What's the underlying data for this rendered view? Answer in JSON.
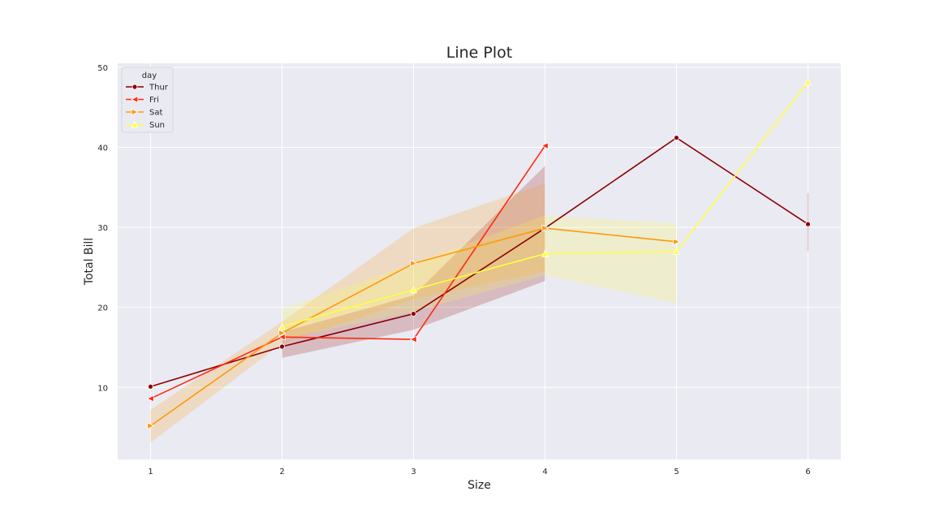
{
  "chart_data": {
    "type": "line",
    "title": "Line Plot",
    "xlabel": "Size",
    "ylabel": "Total Bill",
    "xlim": [
      0.75,
      6.25
    ],
    "ylim": [
      1,
      50.5
    ],
    "x_ticks": [
      1,
      2,
      3,
      4,
      5,
      6
    ],
    "y_ticks": [
      10,
      20,
      30,
      40,
      50
    ],
    "grid": true,
    "background": "#eaeaf2",
    "legend": {
      "title": "day",
      "position": "top-left"
    },
    "series": [
      {
        "name": "Thur",
        "color": "#8b0000",
        "marker": "circle",
        "points": [
          {
            "x": 1,
            "y": 10.1
          },
          {
            "x": 2,
            "y": 15.1
          },
          {
            "x": 3,
            "y": 19.2
          },
          {
            "x": 4,
            "y": 29.9
          },
          {
            "x": 5,
            "y": 41.2
          },
          {
            "x": 6,
            "y": 30.4
          }
        ],
        "ci": [
          {
            "x": 2,
            "lo": 13.7,
            "hi": 16.9
          },
          {
            "x": 3,
            "lo": 17.2,
            "hi": 21.5
          },
          {
            "x": 4,
            "lo": 23.3,
            "hi": 37.7
          }
        ],
        "ci_extra": {
          "x": 6,
          "lo": 27.0,
          "hi": 34.3
        }
      },
      {
        "name": "Fri",
        "color": "#ff2a12",
        "marker": "triangle-left",
        "points": [
          {
            "x": 1,
            "y": 8.6
          },
          {
            "x": 2,
            "y": 16.3
          },
          {
            "x": 3,
            "y": 16.0
          },
          {
            "x": 4,
            "y": 40.2
          }
        ],
        "ci": []
      },
      {
        "name": "Sat",
        "color": "#ff9a0a",
        "marker": "triangle-right",
        "points": [
          {
            "x": 1,
            "y": 5.2
          },
          {
            "x": 2,
            "y": 16.8
          },
          {
            "x": 3,
            "y": 25.5
          },
          {
            "x": 4,
            "y": 29.9
          },
          {
            "x": 5,
            "y": 28.2
          }
        ],
        "ci": [
          {
            "x": 1,
            "lo": 3.1,
            "hi": 7.2
          },
          {
            "x": 2,
            "lo": 15.5,
            "hi": 18.2
          },
          {
            "x": 3,
            "lo": 21.0,
            "hi": 29.9
          },
          {
            "x": 4,
            "lo": 24.5,
            "hi": 35.5
          }
        ]
      },
      {
        "name": "Sun",
        "color": "#ffff44",
        "marker": "triangle-up",
        "points": [
          {
            "x": 2,
            "y": 17.6
          },
          {
            "x": 3,
            "y": 22.2
          },
          {
            "x": 4,
            "y": 26.7
          },
          {
            "x": 5,
            "y": 27.0
          },
          {
            "x": 6,
            "y": 48.2
          }
        ],
        "ci": [
          {
            "x": 2,
            "lo": 16.0,
            "hi": 19.8
          },
          {
            "x": 3,
            "lo": 19.5,
            "hi": 25.5
          },
          {
            "x": 4,
            "lo": 24.0,
            "hi": 31.5
          },
          {
            "x": 5,
            "lo": 20.5,
            "hi": 30.5
          }
        ]
      }
    ]
  }
}
